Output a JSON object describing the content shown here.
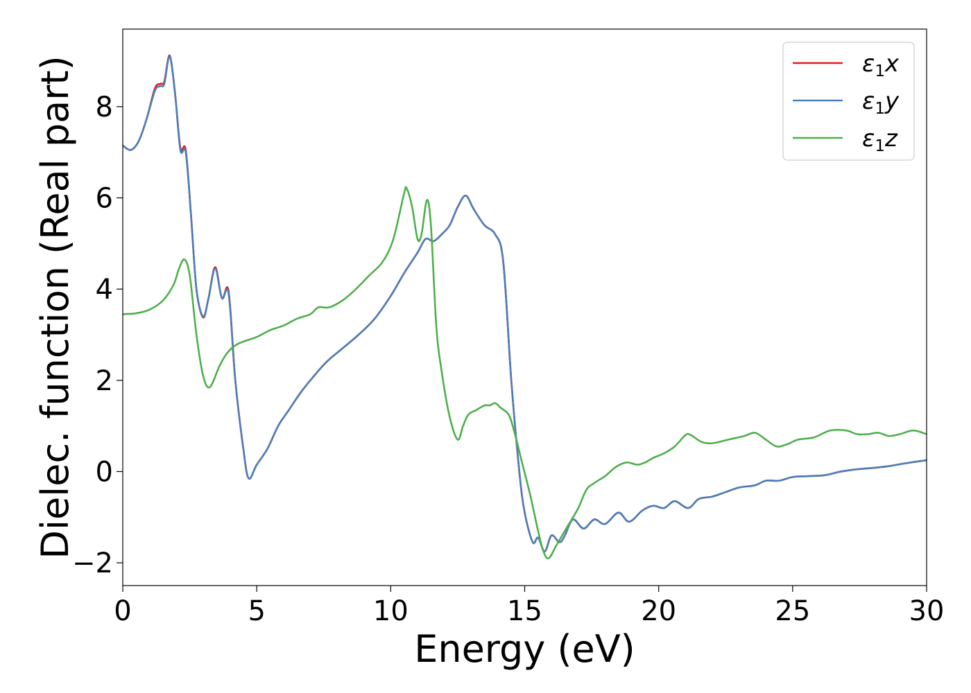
{
  "chart_data": {
    "type": "line",
    "title": "",
    "xlabel": "Energy (eV)",
    "ylabel": "Dielec. function (Real part)",
    "xlim": [
      0,
      30
    ],
    "ylim": [
      -2.5,
      9.7
    ],
    "x_ticks": [
      0,
      5,
      10,
      15,
      20,
      25,
      30
    ],
    "x_tick_labels": [
      "0",
      "5",
      "10",
      "15",
      "20",
      "25",
      "30"
    ],
    "y_ticks": [
      -2,
      0,
      2,
      4,
      6,
      8
    ],
    "y_tick_labels": [
      "−2",
      "0",
      "2",
      "4",
      "6",
      "8"
    ],
    "grid": false,
    "legend_position": "upper-right",
    "series": [
      {
        "name": "ε1x",
        "legend_symbol": "ε",
        "legend_sub": "1",
        "legend_var": "x",
        "color": "#e41a1c",
        "points": [
          [
            0,
            7.15
          ],
          [
            0.3,
            7.05
          ],
          [
            0.6,
            7.25
          ],
          [
            0.9,
            7.75
          ],
          [
            1.2,
            8.4
          ],
          [
            1.4,
            8.5
          ],
          [
            1.55,
            8.55
          ],
          [
            1.75,
            9.12
          ],
          [
            1.95,
            8.3
          ],
          [
            2.15,
            7.1
          ],
          [
            2.35,
            7.05
          ],
          [
            2.55,
            5.6
          ],
          [
            2.75,
            4.0
          ],
          [
            3.0,
            3.38
          ],
          [
            3.2,
            3.8
          ],
          [
            3.45,
            4.48
          ],
          [
            3.7,
            3.8
          ],
          [
            3.95,
            3.95
          ],
          [
            4.2,
            2.0
          ],
          [
            4.5,
            0.5
          ],
          [
            4.7,
            -0.15
          ],
          [
            5.0,
            0.15
          ],
          [
            5.4,
            0.5
          ],
          [
            5.8,
            1.0
          ],
          [
            6.2,
            1.35
          ],
          [
            6.6,
            1.7
          ],
          [
            7.0,
            2.0
          ],
          [
            7.6,
            2.4
          ],
          [
            8.2,
            2.7
          ],
          [
            8.8,
            3.0
          ],
          [
            9.4,
            3.35
          ],
          [
            10.0,
            3.85
          ],
          [
            10.5,
            4.35
          ],
          [
            11.0,
            4.8
          ],
          [
            11.3,
            5.1
          ],
          [
            11.6,
            5.05
          ],
          [
            11.9,
            5.2
          ],
          [
            12.2,
            5.4
          ],
          [
            12.5,
            5.8
          ],
          [
            12.8,
            6.05
          ],
          [
            13.1,
            5.75
          ],
          [
            13.5,
            5.4
          ],
          [
            13.9,
            5.2
          ],
          [
            14.2,
            4.6
          ],
          [
            14.5,
            2.0
          ],
          [
            14.8,
            0.0
          ],
          [
            15.0,
            -0.9
          ],
          [
            15.3,
            -1.55
          ],
          [
            15.5,
            -1.45
          ],
          [
            15.75,
            -1.75
          ],
          [
            16.0,
            -1.4
          ],
          [
            16.3,
            -1.55
          ],
          [
            16.5,
            -1.4
          ],
          [
            16.8,
            -1.05
          ],
          [
            17.2,
            -1.25
          ],
          [
            17.6,
            -1.05
          ],
          [
            18.0,
            -1.15
          ],
          [
            18.5,
            -0.9
          ],
          [
            18.9,
            -1.1
          ],
          [
            19.4,
            -0.85
          ],
          [
            19.8,
            -0.75
          ],
          [
            20.2,
            -0.8
          ],
          [
            20.6,
            -0.65
          ],
          [
            21.1,
            -0.8
          ],
          [
            21.5,
            -0.6
          ],
          [
            22.0,
            -0.55
          ],
          [
            22.5,
            -0.45
          ],
          [
            23.0,
            -0.35
          ],
          [
            23.6,
            -0.3
          ],
          [
            24.0,
            -0.2
          ],
          [
            24.5,
            -0.2
          ],
          [
            25.0,
            -0.12
          ],
          [
            25.6,
            -0.1
          ],
          [
            26.2,
            -0.08
          ],
          [
            26.8,
            0.0
          ],
          [
            27.4,
            0.05
          ],
          [
            28.0,
            0.08
          ],
          [
            28.6,
            0.12
          ],
          [
            29.2,
            0.18
          ],
          [
            30.0,
            0.25
          ]
        ]
      },
      {
        "name": "ε1y",
        "legend_symbol": "ε",
        "legend_sub": "1",
        "legend_var": "y",
        "color": "#4a7fba",
        "points": [
          [
            0,
            7.15
          ],
          [
            0.3,
            7.05
          ],
          [
            0.6,
            7.25
          ],
          [
            0.9,
            7.75
          ],
          [
            1.2,
            8.35
          ],
          [
            1.4,
            8.45
          ],
          [
            1.55,
            8.5
          ],
          [
            1.75,
            9.1
          ],
          [
            1.95,
            8.3
          ],
          [
            2.15,
            7.05
          ],
          [
            2.35,
            7.0
          ],
          [
            2.55,
            5.6
          ],
          [
            2.75,
            4.0
          ],
          [
            3.0,
            3.4
          ],
          [
            3.2,
            3.8
          ],
          [
            3.45,
            4.45
          ],
          [
            3.7,
            3.8
          ],
          [
            3.95,
            3.9
          ],
          [
            4.2,
            2.0
          ],
          [
            4.5,
            0.5
          ],
          [
            4.7,
            -0.15
          ],
          [
            5.0,
            0.15
          ],
          [
            5.4,
            0.5
          ],
          [
            5.8,
            1.0
          ],
          [
            6.2,
            1.35
          ],
          [
            6.6,
            1.7
          ],
          [
            7.0,
            2.0
          ],
          [
            7.6,
            2.4
          ],
          [
            8.2,
            2.7
          ],
          [
            8.8,
            3.0
          ],
          [
            9.4,
            3.35
          ],
          [
            10.0,
            3.85
          ],
          [
            10.5,
            4.35
          ],
          [
            11.0,
            4.8
          ],
          [
            11.3,
            5.1
          ],
          [
            11.6,
            5.05
          ],
          [
            11.9,
            5.2
          ],
          [
            12.2,
            5.4
          ],
          [
            12.5,
            5.8
          ],
          [
            12.8,
            6.05
          ],
          [
            13.1,
            5.75
          ],
          [
            13.5,
            5.4
          ],
          [
            13.9,
            5.2
          ],
          [
            14.2,
            4.6
          ],
          [
            14.5,
            2.0
          ],
          [
            14.8,
            0.0
          ],
          [
            15.0,
            -0.9
          ],
          [
            15.3,
            -1.55
          ],
          [
            15.5,
            -1.45
          ],
          [
            15.75,
            -1.75
          ],
          [
            16.0,
            -1.4
          ],
          [
            16.3,
            -1.55
          ],
          [
            16.5,
            -1.4
          ],
          [
            16.8,
            -1.05
          ],
          [
            17.2,
            -1.25
          ],
          [
            17.6,
            -1.05
          ],
          [
            18.0,
            -1.15
          ],
          [
            18.5,
            -0.9
          ],
          [
            18.9,
            -1.1
          ],
          [
            19.4,
            -0.85
          ],
          [
            19.8,
            -0.75
          ],
          [
            20.2,
            -0.8
          ],
          [
            20.6,
            -0.65
          ],
          [
            21.1,
            -0.8
          ],
          [
            21.5,
            -0.6
          ],
          [
            22.0,
            -0.55
          ],
          [
            22.5,
            -0.45
          ],
          [
            23.0,
            -0.35
          ],
          [
            23.6,
            -0.3
          ],
          [
            24.0,
            -0.2
          ],
          [
            24.5,
            -0.2
          ],
          [
            25.0,
            -0.12
          ],
          [
            25.6,
            -0.1
          ],
          [
            26.2,
            -0.08
          ],
          [
            26.8,
            0.0
          ],
          [
            27.4,
            0.05
          ],
          [
            28.0,
            0.08
          ],
          [
            28.6,
            0.12
          ],
          [
            29.2,
            0.18
          ],
          [
            30.0,
            0.25
          ]
        ]
      },
      {
        "name": "ε1z",
        "legend_symbol": "ε",
        "legend_sub": "1",
        "legend_var": "z",
        "color": "#4daf4a",
        "points": [
          [
            0,
            3.45
          ],
          [
            0.5,
            3.47
          ],
          [
            1.0,
            3.55
          ],
          [
            1.5,
            3.75
          ],
          [
            1.9,
            4.1
          ],
          [
            2.1,
            4.45
          ],
          [
            2.3,
            4.65
          ],
          [
            2.5,
            4.3
          ],
          [
            2.75,
            3.0
          ],
          [
            3.0,
            2.1
          ],
          [
            3.25,
            1.85
          ],
          [
            3.6,
            2.3
          ],
          [
            3.9,
            2.6
          ],
          [
            4.3,
            2.8
          ],
          [
            5.0,
            2.95
          ],
          [
            5.5,
            3.1
          ],
          [
            6.0,
            3.2
          ],
          [
            6.5,
            3.35
          ],
          [
            7.0,
            3.45
          ],
          [
            7.3,
            3.6
          ],
          [
            7.7,
            3.6
          ],
          [
            8.2,
            3.75
          ],
          [
            8.7,
            4.0
          ],
          [
            9.2,
            4.3
          ],
          [
            9.7,
            4.6
          ],
          [
            10.1,
            5.1
          ],
          [
            10.5,
            6.1
          ],
          [
            10.6,
            6.2
          ],
          [
            10.8,
            5.8
          ],
          [
            11.0,
            5.1
          ],
          [
            11.15,
            5.2
          ],
          [
            11.35,
            5.95
          ],
          [
            11.5,
            5.4
          ],
          [
            11.7,
            3.2
          ],
          [
            11.9,
            2.2
          ],
          [
            12.2,
            1.2
          ],
          [
            12.5,
            0.7
          ],
          [
            12.7,
            1.0
          ],
          [
            12.9,
            1.25
          ],
          [
            13.2,
            1.35
          ],
          [
            13.5,
            1.45
          ],
          [
            13.7,
            1.45
          ],
          [
            13.9,
            1.5
          ],
          [
            14.1,
            1.4
          ],
          [
            14.4,
            1.25
          ],
          [
            14.6,
            0.9
          ],
          [
            14.9,
            0.2
          ],
          [
            15.2,
            -0.5
          ],
          [
            15.5,
            -1.3
          ],
          [
            15.7,
            -1.75
          ],
          [
            15.9,
            -1.9
          ],
          [
            16.2,
            -1.6
          ],
          [
            16.6,
            -1.2
          ],
          [
            17.0,
            -0.8
          ],
          [
            17.3,
            -0.4
          ],
          [
            17.6,
            -0.25
          ],
          [
            18.0,
            -0.1
          ],
          [
            18.4,
            0.1
          ],
          [
            18.8,
            0.2
          ],
          [
            19.2,
            0.15
          ],
          [
            19.5,
            0.2
          ],
          [
            19.8,
            0.3
          ],
          [
            20.2,
            0.4
          ],
          [
            20.6,
            0.55
          ],
          [
            21.0,
            0.8
          ],
          [
            21.2,
            0.8
          ],
          [
            21.6,
            0.65
          ],
          [
            22.0,
            0.62
          ],
          [
            22.6,
            0.7
          ],
          [
            23.2,
            0.78
          ],
          [
            23.6,
            0.85
          ],
          [
            24.0,
            0.7
          ],
          [
            24.4,
            0.55
          ],
          [
            24.8,
            0.6
          ],
          [
            25.2,
            0.7
          ],
          [
            25.8,
            0.75
          ],
          [
            26.4,
            0.9
          ],
          [
            27.0,
            0.9
          ],
          [
            27.4,
            0.82
          ],
          [
            27.8,
            0.82
          ],
          [
            28.2,
            0.85
          ],
          [
            28.6,
            0.78
          ],
          [
            29.0,
            0.82
          ],
          [
            29.5,
            0.9
          ],
          [
            30.0,
            0.82
          ]
        ]
      }
    ]
  }
}
